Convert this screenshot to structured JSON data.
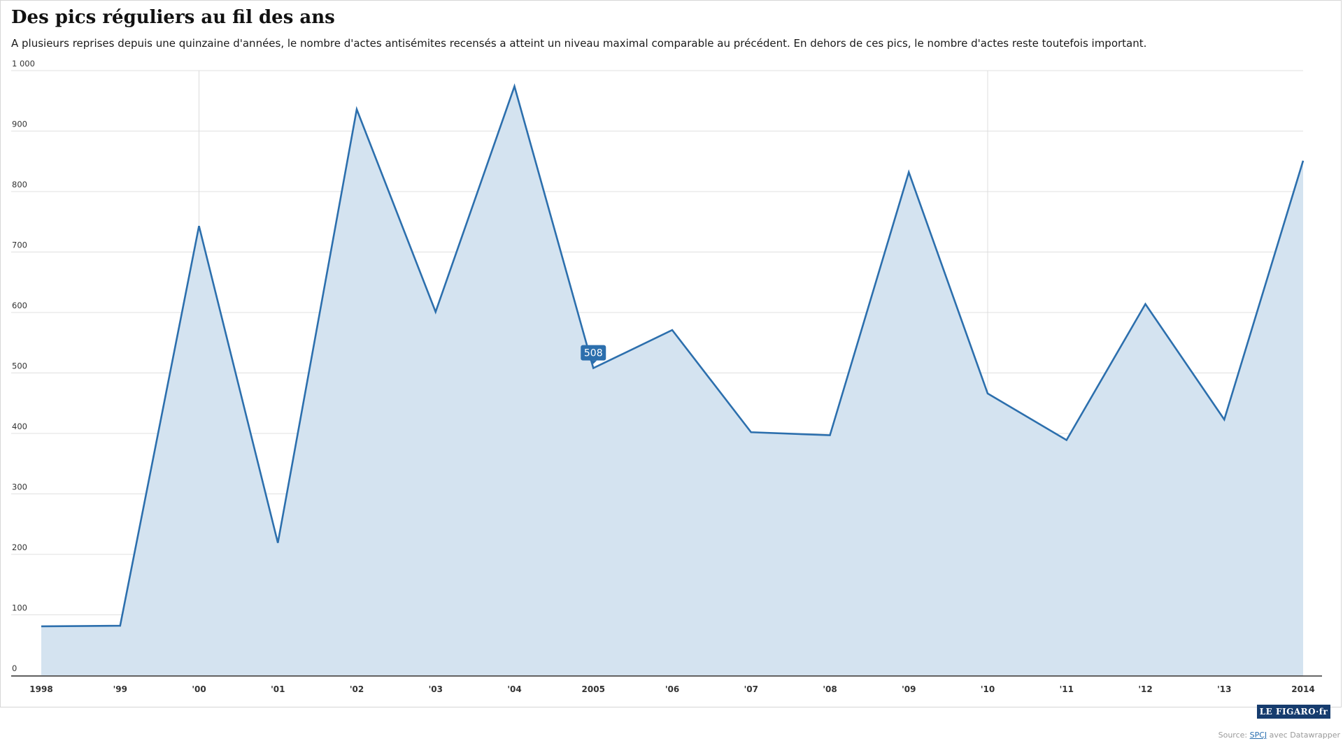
{
  "chart_data": {
    "type": "area",
    "title": "Des pics réguliers au fil des ans",
    "subtitle": "A plusieurs reprises depuis une quinzaine d'années, le nombre d'actes antisémites recensés a atteint un niveau maximal comparable au précédent. En dehors de ces pics, le nombre d'actes reste toutefois important.",
    "xlabel": "",
    "ylabel": "",
    "x": [
      "1998",
      "'99",
      "'00",
      "'01",
      "'02",
      "'03",
      "'04",
      "2005",
      "'06",
      "'07",
      "'08",
      "'09",
      "'10",
      "'11",
      "'12",
      "'13",
      "2014"
    ],
    "values": [
      81,
      82,
      743,
      219,
      936,
      601,
      974,
      508,
      571,
      402,
      397,
      832,
      466,
      389,
      614,
      423,
      851
    ],
    "ylim": [
      0,
      1000
    ],
    "yticks": [
      0,
      100,
      200,
      300,
      400,
      500,
      600,
      700,
      800,
      900,
      1000
    ],
    "ytick_labels": [
      "0",
      "100",
      "200",
      "300",
      "400",
      "500",
      "600",
      "700",
      "800",
      "900",
      "1 000"
    ],
    "highlight": {
      "x": "2005",
      "value": 508,
      "label": "508"
    },
    "vertical_gridlines_at": [
      "'00",
      "'10"
    ],
    "grid": true,
    "colors": {
      "line": "#2c6fad",
      "fill": "#d4e3f0",
      "grid": "#e0e0e0",
      "callout": "#2c6fad"
    }
  },
  "source": {
    "prefix": "Source: ",
    "name": "SPCJ",
    "suffix": " avec Datawrapper"
  },
  "logo": {
    "text": "LE FIGARO·fr"
  }
}
